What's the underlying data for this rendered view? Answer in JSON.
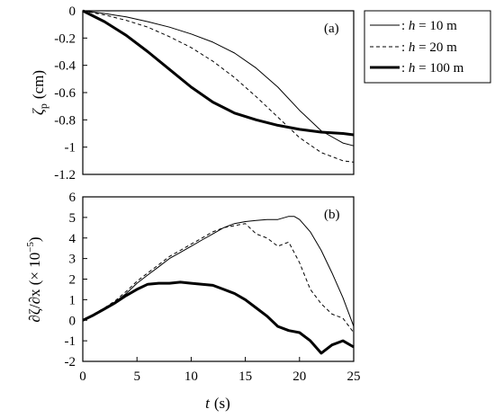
{
  "chart_data": [
    {
      "panel": "(a)",
      "type": "line",
      "ylabel_symbol": "ζ",
      "ylabel_sub": "p",
      "ylabel_unit": "(cm)",
      "xlim": [
        0,
        25
      ],
      "ylim": [
        -1.2,
        0
      ],
      "yticks": [
        0,
        -0.2,
        -0.4,
        -0.6,
        -0.8,
        -1,
        -1.2
      ],
      "ytick_labels": [
        "0",
        "-0.2",
        "-0.4",
        "-0.6",
        "-0.8",
        "-1",
        "-1.2"
      ],
      "series": [
        {
          "name": "h = 10 m",
          "x": [
            0,
            2,
            4,
            6,
            8,
            10,
            12,
            14,
            16,
            18,
            20,
            22,
            24,
            25
          ],
          "y": [
            0,
            -0.02,
            -0.045,
            -0.08,
            -0.12,
            -0.17,
            -0.23,
            -0.31,
            -0.42,
            -0.56,
            -0.73,
            -0.88,
            -0.97,
            -0.99
          ]
        },
        {
          "name": "h = 20 m",
          "x": [
            0,
            2,
            4,
            6,
            8,
            10,
            12,
            14,
            16,
            18,
            20,
            22,
            24,
            25
          ],
          "y": [
            0,
            -0.03,
            -0.07,
            -0.12,
            -0.19,
            -0.27,
            -0.37,
            -0.49,
            -0.63,
            -0.78,
            -0.93,
            -1.04,
            -1.1,
            -1.11
          ]
        },
        {
          "name": "h = 100 m",
          "x": [
            0,
            2,
            4,
            6,
            8,
            10,
            12,
            14,
            16,
            18,
            20,
            22,
            24,
            25
          ],
          "y": [
            0,
            -0.08,
            -0.18,
            -0.3,
            -0.43,
            -0.56,
            -0.67,
            -0.75,
            -0.8,
            -0.84,
            -0.87,
            -0.89,
            -0.9,
            -0.91
          ]
        }
      ]
    },
    {
      "panel": "(b)",
      "type": "line",
      "ylabel": "∂ζ/∂x (× 10",
      "ylabel_exp": "−5",
      "ylabel_close": ")",
      "xlabel_symbol": "t",
      "xlabel_unit": "(s)",
      "xlim": [
        0,
        25
      ],
      "ylim": [
        -2,
        6
      ],
      "xticks": [
        0,
        5,
        10,
        15,
        20,
        25
      ],
      "yticks": [
        6,
        5,
        4,
        3,
        2,
        1,
        0,
        -1,
        -2
      ],
      "ytick_labels": [
        "6",
        "5",
        "4",
        "3",
        "2",
        "1",
        "0",
        "-1",
        "-2"
      ],
      "series": [
        {
          "name": "h = 10 m",
          "x": [
            0,
            1,
            2,
            3,
            4,
            5,
            6,
            7,
            8,
            9,
            10,
            11,
            12,
            13,
            14,
            15,
            16,
            17,
            18,
            19,
            19.5,
            20,
            21,
            22,
            23,
            24,
            25
          ],
          "y": [
            0,
            0.3,
            0.6,
            0.9,
            1.3,
            1.8,
            2.2,
            2.6,
            3.0,
            3.3,
            3.6,
            3.9,
            4.2,
            4.5,
            4.7,
            4.8,
            4.85,
            4.9,
            4.9,
            5.05,
            5.05,
            4.9,
            4.3,
            3.4,
            2.3,
            1.1,
            -0.3
          ]
        },
        {
          "name": "h = 20 m",
          "x": [
            0,
            1,
            2,
            3,
            4,
            5,
            6,
            7,
            8,
            9,
            10,
            11,
            12,
            13,
            14,
            15,
            16,
            17,
            18,
            19,
            20,
            21,
            22,
            23,
            24,
            25
          ],
          "y": [
            0,
            0.3,
            0.6,
            0.95,
            1.4,
            1.9,
            2.3,
            2.7,
            3.1,
            3.4,
            3.7,
            4.0,
            4.3,
            4.5,
            4.6,
            4.7,
            4.2,
            4.0,
            3.6,
            3.8,
            2.8,
            1.5,
            0.8,
            0.3,
            0.1,
            -0.6
          ]
        },
        {
          "name": "h = 100 m",
          "x": [
            0,
            1,
            2,
            3,
            4,
            5,
            6,
            7,
            8,
            9,
            10,
            11,
            12,
            13,
            14,
            15,
            16,
            17,
            18,
            19,
            20,
            21,
            22,
            23,
            24,
            25
          ],
          "y": [
            0,
            0.25,
            0.55,
            0.85,
            1.2,
            1.5,
            1.75,
            1.8,
            1.8,
            1.85,
            1.8,
            1.75,
            1.7,
            1.5,
            1.3,
            1.0,
            0.6,
            0.2,
            -0.3,
            -0.5,
            -0.6,
            -1.0,
            -1.6,
            -1.2,
            -1.0,
            -1.3
          ]
        }
      ]
    }
  ],
  "legend": {
    "placement": "top-right",
    "entries": [
      {
        "prefix": ": ",
        "symbol": "h",
        "rest": " = 10 m",
        "style": "thin"
      },
      {
        "prefix": ": ",
        "symbol": "h",
        "rest": " = 20 m",
        "style": "dashed"
      },
      {
        "prefix": ": ",
        "symbol": "h",
        "rest": " = 100 m",
        "style": "thick"
      }
    ]
  },
  "colors": {
    "line": "#000000",
    "background": "#ffffff"
  }
}
